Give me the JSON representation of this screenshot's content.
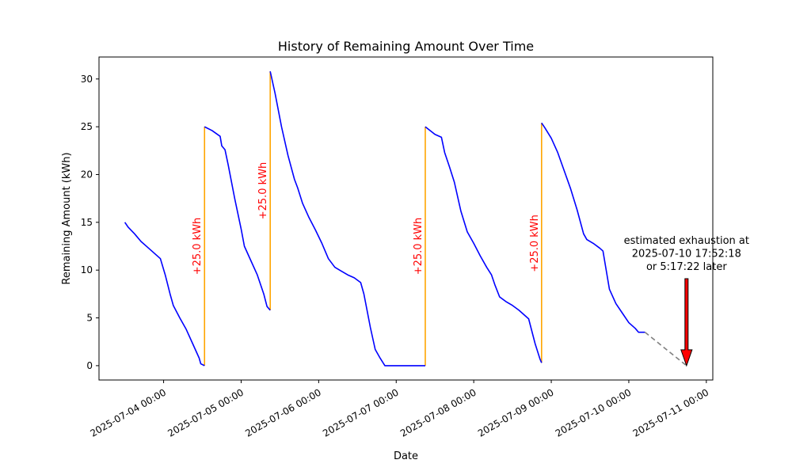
{
  "chart_data": {
    "type": "line",
    "title": "History of Remaining Amount Over Time",
    "xlabel": "Date",
    "ylabel": "Remaining Amount (kWh)",
    "x_ticks": [
      "2025-07-04 00:00",
      "2025-07-05 00:00",
      "2025-07-06 00:00",
      "2025-07-07 00:00",
      "2025-07-08 00:00",
      "2025-07-09 00:00",
      "2025-07-10 00:00",
      "2025-07-11 00:00"
    ],
    "y_ticks": [
      0,
      5,
      10,
      15,
      20,
      25,
      30
    ],
    "xlim": [
      "2025-07-03 04:00",
      "2025-07-11 02:00"
    ],
    "ylim": [
      -1.5,
      32.3
    ],
    "grid": false,
    "series": [
      {
        "color": "#0000ff",
        "style": "solid",
        "points": [
          [
            "2025-07-03 12:00",
            15.0
          ],
          [
            "2025-07-03 13:00",
            14.5
          ],
          [
            "2025-07-03 15:00",
            13.8
          ],
          [
            "2025-07-03 17:00",
            13.0
          ],
          [
            "2025-07-03 19:00",
            12.4
          ],
          [
            "2025-07-03 21:00",
            11.8
          ],
          [
            "2025-07-03 23:00",
            11.2
          ],
          [
            "2025-07-04 00:30",
            9.5
          ],
          [
            "2025-07-04 02:00",
            7.5
          ],
          [
            "2025-07-04 03:00",
            6.3
          ],
          [
            "2025-07-04 05:00",
            5.0
          ],
          [
            "2025-07-04 07:00",
            3.8
          ],
          [
            "2025-07-04 09:00",
            2.3
          ],
          [
            "2025-07-04 11:00",
            0.8
          ],
          [
            "2025-07-04 11:30",
            0.2
          ],
          [
            "2025-07-04 12:40",
            0.0
          ]
        ]
      },
      {
        "color": "#0000ff",
        "style": "solid",
        "points": [
          [
            "2025-07-04 12:40",
            25.0
          ],
          [
            "2025-07-04 15:00",
            24.6
          ],
          [
            "2025-07-04 17:30",
            24.0
          ],
          [
            "2025-07-04 18:00",
            23.0
          ],
          [
            "2025-07-04 19:00",
            22.6
          ],
          [
            "2025-07-04 20:00",
            21.0
          ],
          [
            "2025-07-04 22:00",
            17.5
          ],
          [
            "2025-07-05 00:00",
            14.3
          ],
          [
            "2025-07-05 01:00",
            12.5
          ],
          [
            "2025-07-05 03:00",
            11.0
          ],
          [
            "2025-07-05 05:00",
            9.5
          ],
          [
            "2025-07-05 07:00",
            7.5
          ],
          [
            "2025-07-05 08:00",
            6.2
          ],
          [
            "2025-07-05 09:00",
            5.8
          ]
        ]
      },
      {
        "color": "#0000ff",
        "style": "solid",
        "points": [
          [
            "2025-07-05 09:00",
            30.8
          ],
          [
            "2025-07-05 10:30",
            28.5
          ],
          [
            "2025-07-05 12:30",
            25.0
          ],
          [
            "2025-07-05 14:30",
            22.0
          ],
          [
            "2025-07-05 16:30",
            19.5
          ],
          [
            "2025-07-05 17:30",
            18.6
          ],
          [
            "2025-07-05 19:00",
            17.0
          ],
          [
            "2025-07-05 21:00",
            15.5
          ],
          [
            "2025-07-05 23:00",
            14.2
          ],
          [
            "2025-07-06 01:00",
            12.8
          ],
          [
            "2025-07-06 03:00",
            11.2
          ],
          [
            "2025-07-06 05:00",
            10.3
          ],
          [
            "2025-07-06 07:00",
            9.9
          ],
          [
            "2025-07-06 09:00",
            9.5
          ],
          [
            "2025-07-06 11:00",
            9.2
          ],
          [
            "2025-07-06 13:00",
            8.7
          ],
          [
            "2025-07-06 14:00",
            7.5
          ],
          [
            "2025-07-06 16:00",
            4.0
          ],
          [
            "2025-07-06 17:30",
            1.7
          ],
          [
            "2025-07-06 19:00",
            0.8
          ],
          [
            "2025-07-06 20:30",
            0.0
          ],
          [
            "2025-07-07 09:00",
            0.0
          ]
        ]
      },
      {
        "color": "#0000ff",
        "style": "solid",
        "points": [
          [
            "2025-07-07 09:00",
            25.0
          ],
          [
            "2025-07-07 12:00",
            24.2
          ],
          [
            "2025-07-07 14:00",
            23.9
          ],
          [
            "2025-07-07 15:00",
            22.3
          ],
          [
            "2025-07-07 16:30",
            20.8
          ],
          [
            "2025-07-07 18:00",
            19.2
          ],
          [
            "2025-07-07 20:00",
            16.2
          ],
          [
            "2025-07-07 22:00",
            14.0
          ],
          [
            "2025-07-08 00:00",
            12.8
          ],
          [
            "2025-07-08 02:00",
            11.5
          ],
          [
            "2025-07-08 04:00",
            10.3
          ],
          [
            "2025-07-08 05:30",
            9.5
          ],
          [
            "2025-07-08 06:30",
            8.5
          ],
          [
            "2025-07-08 08:00",
            7.2
          ],
          [
            "2025-07-08 10:00",
            6.7
          ],
          [
            "2025-07-08 12:00",
            6.3
          ],
          [
            "2025-07-08 14:00",
            5.8
          ],
          [
            "2025-07-08 16:00",
            5.2
          ],
          [
            "2025-07-08 17:00",
            4.9
          ],
          [
            "2025-07-08 19:00",
            2.3
          ],
          [
            "2025-07-08 20:30",
            0.7
          ],
          [
            "2025-07-08 21:00",
            0.3
          ]
        ]
      },
      {
        "color": "#0000ff",
        "style": "solid",
        "points": [
          [
            "2025-07-08 21:00",
            25.4
          ],
          [
            "2025-07-08 22:00",
            24.9
          ],
          [
            "2025-07-09 00:00",
            23.8
          ],
          [
            "2025-07-09 02:00",
            22.3
          ],
          [
            "2025-07-09 04:00",
            20.4
          ],
          [
            "2025-07-09 06:00",
            18.5
          ],
          [
            "2025-07-09 08:00",
            16.3
          ],
          [
            "2025-07-09 10:00",
            13.8
          ],
          [
            "2025-07-09 11:00",
            13.2
          ],
          [
            "2025-07-09 13:00",
            12.8
          ],
          [
            "2025-07-09 15:00",
            12.3
          ],
          [
            "2025-07-09 16:00",
            12.0
          ],
          [
            "2025-07-09 18:00",
            8.0
          ],
          [
            "2025-07-09 20:00",
            6.5
          ],
          [
            "2025-07-09 22:00",
            5.5
          ],
          [
            "2025-07-10 00:00",
            4.5
          ],
          [
            "2025-07-10 02:00",
            3.9
          ],
          [
            "2025-07-10 03:00",
            3.5
          ],
          [
            "2025-07-10 05:00",
            3.5
          ]
        ]
      },
      {
        "color": "#808080",
        "style": "dashed",
        "points": [
          [
            "2025-07-10 05:00",
            3.5
          ],
          [
            "2025-07-10 17:52",
            0.0
          ]
        ]
      }
    ],
    "refills": [
      {
        "time": "2025-07-04 12:40",
        "from": 0.0,
        "to": 25.0,
        "label": "+25.0 kWh",
        "label_y": 12.5
      },
      {
        "time": "2025-07-05 09:00",
        "from": 5.8,
        "to": 30.8,
        "label": "+25.0 kWh",
        "label_y": 18.3
      },
      {
        "time": "2025-07-07 09:00",
        "from": 0.0,
        "to": 25.0,
        "label": "+25.0 kWh",
        "label_y": 12.5
      },
      {
        "time": "2025-07-08 21:00",
        "from": 0.3,
        "to": 25.4,
        "label": "+25.0 kWh",
        "label_y": 12.8
      }
    ],
    "refill_color": "#ffa500",
    "refill_label_color": "#ff0000",
    "annotation": {
      "lines": [
        "estimated exhaustion at",
        "2025-07-10 17:52:18",
        "or 5:17:22 later"
      ],
      "target": [
        "2025-07-10 17:52",
        0.0
      ],
      "arrow_color": "#ff0000"
    }
  }
}
